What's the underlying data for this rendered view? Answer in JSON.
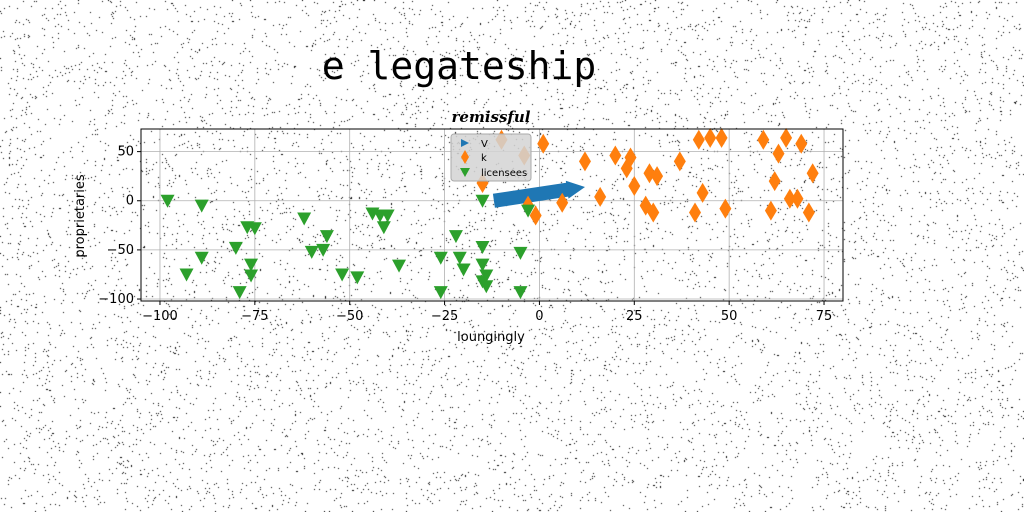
{
  "figure_title": "e legateship",
  "chart_data": {
    "type": "scatter",
    "title": "remissful",
    "xlabel": "loungingly",
    "ylabel": "proprietaries",
    "xlim": [
      -105,
      80
    ],
    "ylim": [
      -102,
      73
    ],
    "xticks": [
      -100,
      -75,
      -50,
      -25,
      0,
      25,
      50,
      75
    ],
    "yticks": [
      50,
      0,
      -50,
      -100
    ],
    "xtick_labels": [
      "−100",
      "−75",
      "−50",
      "−25",
      "0",
      "25",
      "50",
      "75"
    ],
    "ytick_labels": [
      "50",
      "0",
      "−50",
      "−100"
    ],
    "grid": true,
    "legend_position": "top-center",
    "colors": {
      "V": "#1f77b4",
      "k": "#ff7f0e",
      "licensees": "#2ca02c"
    },
    "series": [
      {
        "name": "V",
        "marker": "arrow",
        "x": [
          -12,
          12
        ],
        "y": [
          0,
          14
        ]
      },
      {
        "name": "k",
        "marker": "diamond",
        "points": [
          [
            -15,
            18
          ],
          [
            -10,
            62
          ],
          [
            -4,
            46
          ],
          [
            1,
            58
          ],
          [
            -3,
            -5
          ],
          [
            -1,
            -15
          ],
          [
            6,
            -2
          ],
          [
            12,
            40
          ],
          [
            16,
            4
          ],
          [
            20,
            46
          ],
          [
            23,
            33
          ],
          [
            24,
            44
          ],
          [
            25,
            15
          ],
          [
            28,
            -5
          ],
          [
            29,
            28
          ],
          [
            30,
            -12
          ],
          [
            31,
            25
          ],
          [
            37,
            40
          ],
          [
            41,
            -12
          ],
          [
            42,
            62
          ],
          [
            43,
            8
          ],
          [
            45,
            64
          ],
          [
            48,
            64
          ],
          [
            49,
            -8
          ],
          [
            59,
            62
          ],
          [
            61,
            -10
          ],
          [
            62,
            20
          ],
          [
            63,
            48
          ],
          [
            65,
            64
          ],
          [
            66,
            2
          ],
          [
            68,
            2
          ],
          [
            69,
            58
          ],
          [
            71,
            -12
          ],
          [
            72,
            28
          ]
        ]
      },
      {
        "name": "licensees",
        "marker": "triangle-down",
        "points": [
          [
            -98,
            0
          ],
          [
            -89,
            -5
          ],
          [
            -93,
            -75
          ],
          [
            -89,
            -58
          ],
          [
            -80,
            -48
          ],
          [
            -79,
            -93
          ],
          [
            -77,
            -27
          ],
          [
            -76,
            -65
          ],
          [
            -76,
            -76
          ],
          [
            -75,
            -28
          ],
          [
            -62,
            -18
          ],
          [
            -60,
            -52
          ],
          [
            -57,
            -50
          ],
          [
            -56,
            -36
          ],
          [
            -52,
            -75
          ],
          [
            -48,
            -78
          ],
          [
            -44,
            -13
          ],
          [
            -42,
            -15
          ],
          [
            -41,
            -27
          ],
          [
            -40,
            -15
          ],
          [
            -37,
            -66
          ],
          [
            -26,
            -58
          ],
          [
            -26,
            -93
          ],
          [
            -22,
            -36
          ],
          [
            -21,
            -58
          ],
          [
            -20,
            -70
          ],
          [
            -15,
            -82
          ],
          [
            -15,
            -47
          ],
          [
            -15,
            -65
          ],
          [
            -14,
            -76
          ],
          [
            -14,
            -87
          ],
          [
            -5,
            -53
          ],
          [
            -5,
            -93
          ],
          [
            -3,
            -10
          ],
          [
            -15,
            0
          ]
        ]
      }
    ]
  }
}
